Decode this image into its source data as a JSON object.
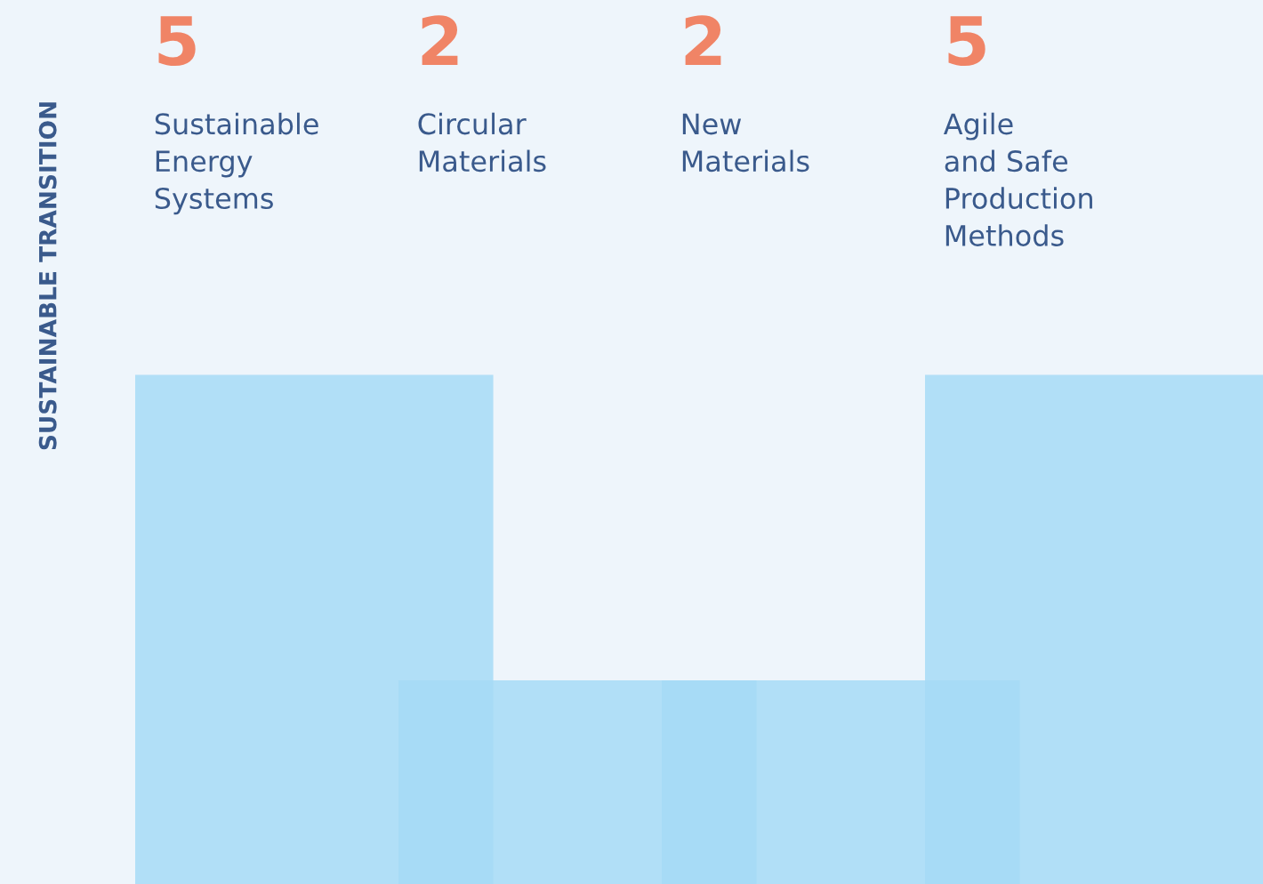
{
  "chart_data": {
    "type": "bar",
    "ylabel": "SUSTAINABLE TRANSITION",
    "categories": [
      "Sustainable\nEnergy\nSystems",
      "Circular\nMaterials",
      "New\nMaterials",
      "Agile\nand Safe\nProduction\nMethods"
    ],
    "values": [
      5,
      2,
      2,
      5
    ],
    "color": "#a6daf6",
    "data_labels": true,
    "grid": false
  }
}
